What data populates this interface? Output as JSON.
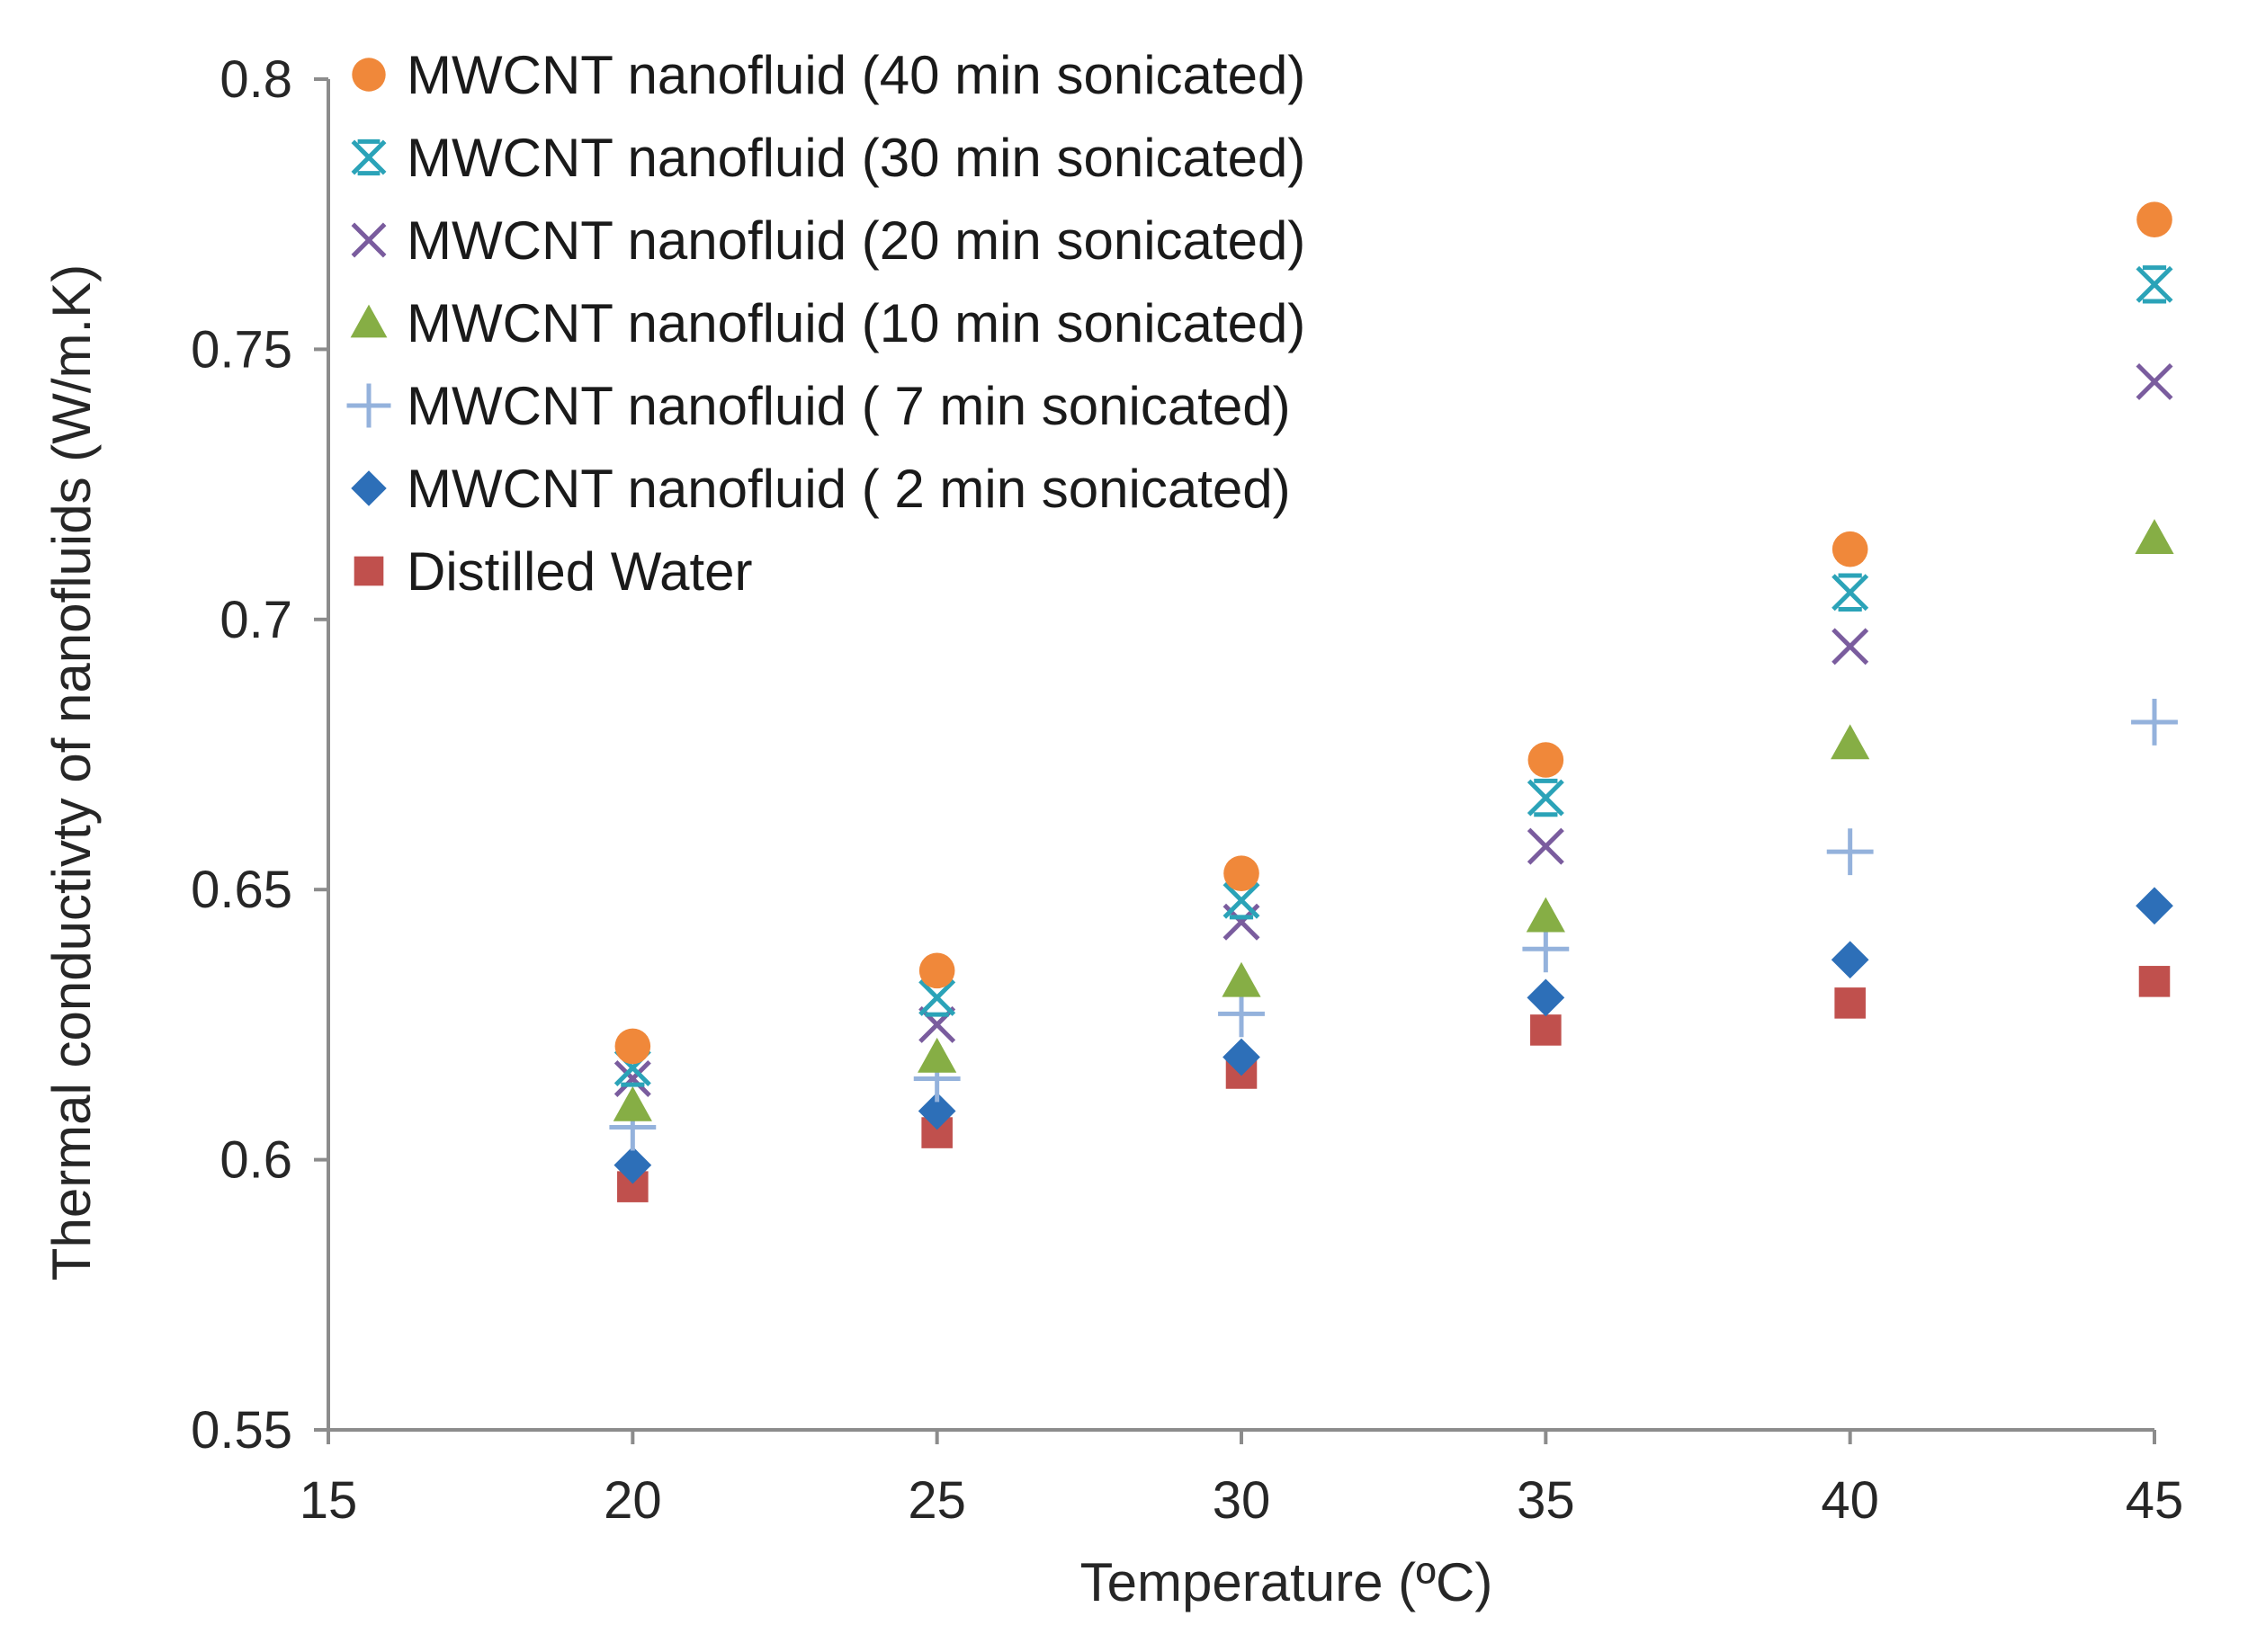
{
  "chart_data": {
    "type": "scatter",
    "title": "",
    "xlabel": "Temperature (ºC)",
    "ylabel": "Thermal conductivty of nanofluids (W/m.K)",
    "xlim": [
      15,
      45
    ],
    "ylim": [
      0.55,
      0.8
    ],
    "x_ticks": [
      15,
      20,
      25,
      30,
      35,
      40,
      45
    ],
    "x_tick_labels": [
      "15",
      "20",
      "25",
      "30",
      "35",
      "40",
      "45"
    ],
    "y_ticks": [
      0.55,
      0.6,
      0.65,
      0.7,
      0.75,
      0.8
    ],
    "y_tick_labels": [
      "0.55",
      "0.6",
      "0.65",
      "0.7",
      "0.75",
      "0.8"
    ],
    "grid": false,
    "legend_position": "top-left",
    "x": [
      20,
      25,
      30,
      35,
      40,
      45
    ],
    "series": [
      {
        "name": "MWCNT nanofluid (40 min sonicated)",
        "marker": "circle",
        "color": "#F0883A",
        "values": [
          0.621,
          0.635,
          0.653,
          0.674,
          0.713,
          0.774
        ]
      },
      {
        "name": "MWCNT nanofluid (30 min sonicated)",
        "marker": "asterisk",
        "color": "#2BA3B8",
        "values": [
          0.617,
          0.63,
          0.648,
          0.667,
          0.705,
          0.762
        ]
      },
      {
        "name": "MWCNT nanofluid (20 min sonicated)",
        "marker": "x",
        "color": "#7A5C9E",
        "values": [
          0.615,
          0.625,
          0.644,
          0.658,
          0.695,
          0.744
        ]
      },
      {
        "name": "MWCNT nanofluid (10 min sonicated)",
        "marker": "triangle",
        "color": "#86AE45",
        "values": [
          0.61,
          0.619,
          0.633,
          0.645,
          0.677,
          0.715
        ]
      },
      {
        "name": "MWCNT nanofluid ( 7 min sonicated)",
        "marker": "plus",
        "color": "#94B2DC",
        "values": [
          0.606,
          0.615,
          0.627,
          0.639,
          0.657,
          0.681
        ]
      },
      {
        "name": "MWCNT nanofluid ( 2 min sonicated)",
        "marker": "diamond",
        "color": "#2D6FB8",
        "values": [
          0.599,
          0.609,
          0.619,
          0.63,
          0.637,
          0.647
        ]
      },
      {
        "name": "Distilled Water",
        "marker": "square",
        "color": "#C0504D",
        "values": [
          0.595,
          0.605,
          0.616,
          0.624,
          0.629,
          0.633
        ]
      }
    ]
  }
}
